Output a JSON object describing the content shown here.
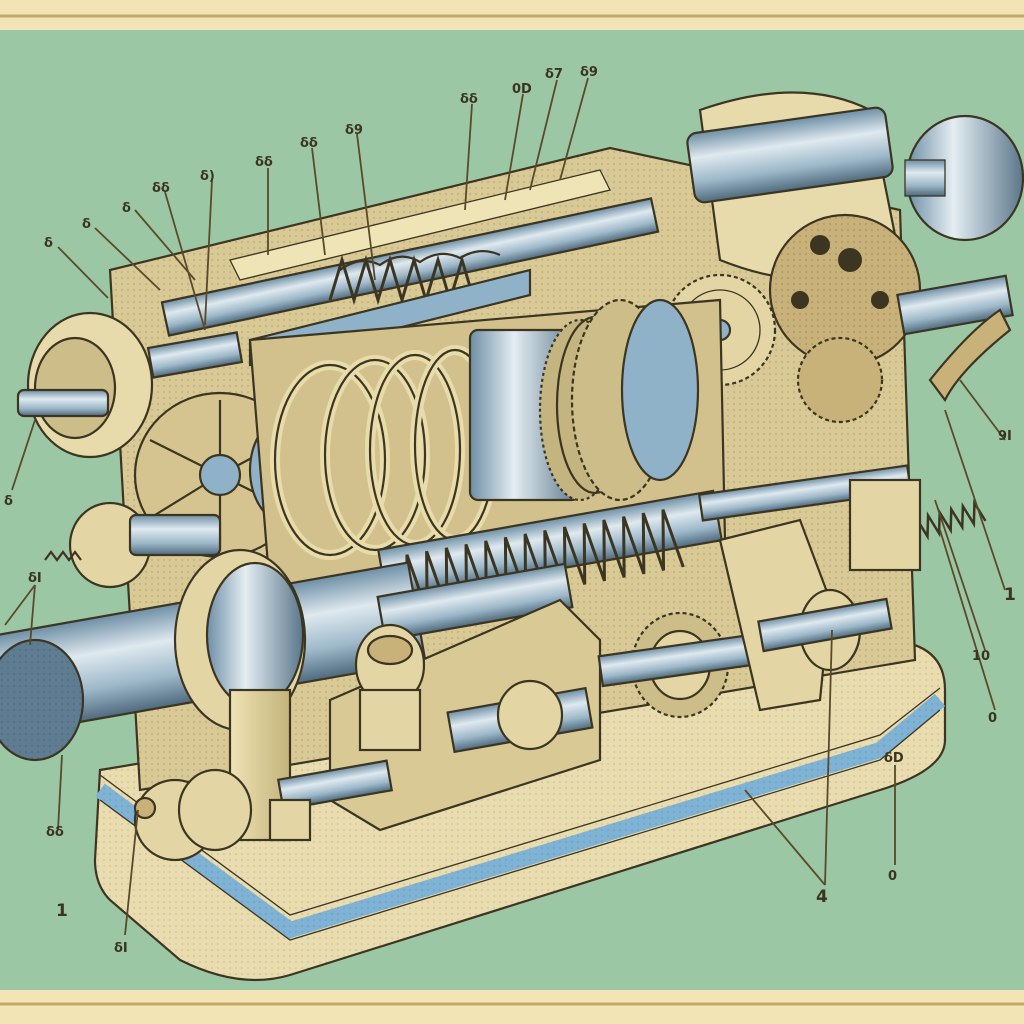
{
  "diagram": {
    "title": "",
    "colors": {
      "background": "#9cc7a4",
      "frame": "#f3e4b6",
      "metal_cream": "#e8dcaa",
      "metal_shadow": "#b8a876",
      "steel_blue": "#8fb2c8",
      "ink": "#3b3522",
      "base_blue": "#7fb3d5",
      "brass": "#c9b27a"
    },
    "labels": [
      {
        "id": "c1",
        "text": "δ"
      },
      {
        "id": "c2",
        "text": "δ"
      },
      {
        "id": "c3",
        "text": "δ"
      },
      {
        "id": "c4",
        "text": "δδ"
      },
      {
        "id": "c5",
        "text": "δ)"
      },
      {
        "id": "c6",
        "text": "δδ"
      },
      {
        "id": "c7",
        "text": "δδ"
      },
      {
        "id": "c8",
        "text": "δ9"
      },
      {
        "id": "c9",
        "text": "δδ"
      },
      {
        "id": "c10",
        "text": "0D"
      },
      {
        "id": "c11",
        "text": "δ7"
      },
      {
        "id": "c12",
        "text": "δ9"
      },
      {
        "id": "r1",
        "text": "9I"
      },
      {
        "id": "r2",
        "text": "1"
      },
      {
        "id": "r3",
        "text": "10"
      },
      {
        "id": "r4",
        "text": "0"
      },
      {
        "id": "b1",
        "text": "δD"
      },
      {
        "id": "b2",
        "text": "0"
      },
      {
        "id": "b3",
        "text": "4"
      },
      {
        "id": "l1",
        "text": "δ"
      },
      {
        "id": "l2",
        "text": "δI"
      },
      {
        "id": "l3",
        "text": "δδ"
      },
      {
        "id": "l4",
        "text": "1"
      },
      {
        "id": "l5",
        "text": "δI"
      }
    ]
  }
}
